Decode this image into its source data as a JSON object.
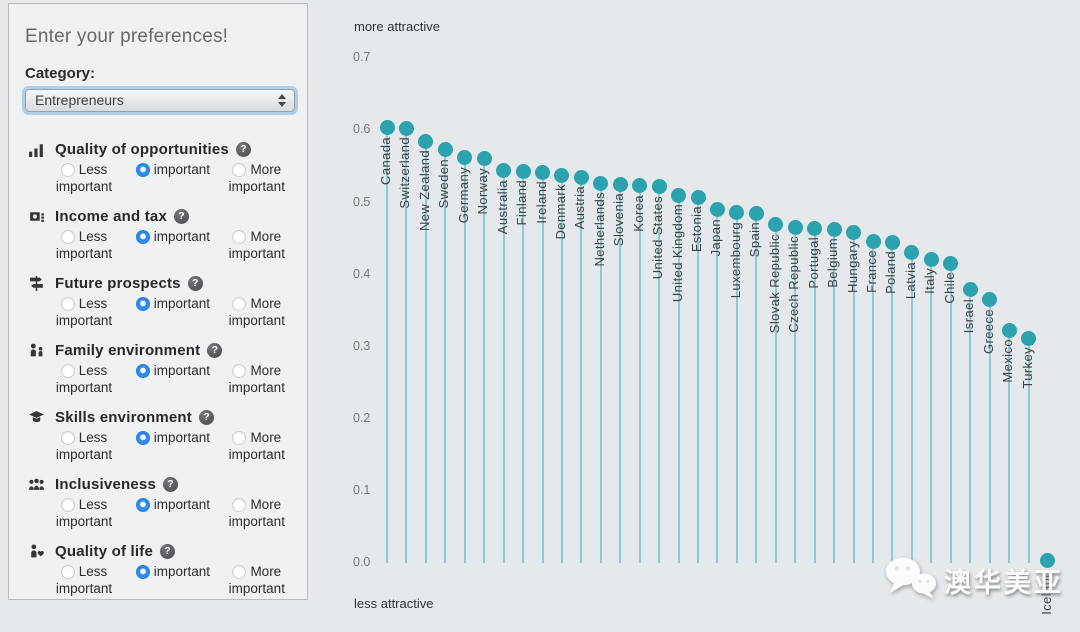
{
  "sidebar": {
    "title": "Enter your preferences!",
    "category_label": "Category:",
    "category_value": "Entrepreneurs",
    "option_less": "Less important",
    "option_mid": "important",
    "option_more": "More important",
    "sections": [
      {
        "label": "Quality of opportunities",
        "icon": "bar-chart-icon",
        "selected": "important"
      },
      {
        "label": "Income and tax",
        "icon": "income-tax-icon",
        "selected": "important"
      },
      {
        "label": "Future prospects",
        "icon": "future-prospects-icon",
        "selected": "important"
      },
      {
        "label": "Family environment",
        "icon": "family-icon",
        "selected": "important"
      },
      {
        "label": "Skills environment",
        "icon": "skills-icon",
        "selected": "important"
      },
      {
        "label": "Inclusiveness",
        "icon": "inclusiveness-icon",
        "selected": "important"
      },
      {
        "label": "Quality of life",
        "icon": "quality-of-life-icon",
        "selected": "important"
      }
    ]
  },
  "chart_data": {
    "type": "lollipop",
    "title": "",
    "top_label": "more attractive",
    "bottom_label": "less attractive",
    "ylim": [
      0.0,
      0.7
    ],
    "y_ticks": [
      0.0,
      0.1,
      0.2,
      0.3,
      0.4,
      0.5,
      0.6,
      0.7
    ],
    "grid": false,
    "dot_color": "#2ba2ad",
    "stem_color": "#8dcbd2",
    "categories": [
      "Canada",
      "Switzerland",
      "New Zealand",
      "Sweden",
      "Germany",
      "Norway",
      "Australia",
      "Finland",
      "Ireland",
      "Denmark",
      "Austria",
      "Netherlands",
      "Slovenia",
      "Korea",
      "United States",
      "United Kingdom",
      "Estonia",
      "Japan",
      "Luxembourg",
      "Spain",
      "Slovak Republic",
      "Czech Republic",
      "Portugal",
      "Belgium",
      "Hungary",
      "France",
      "Poland",
      "Latvia",
      "Italy",
      "Chile",
      "Israel",
      "Greece",
      "Mexico",
      "Turkey",
      "Iceland"
    ],
    "values": [
      0.604,
      0.603,
      0.585,
      0.573,
      0.562,
      0.561,
      0.544,
      0.543,
      0.542,
      0.538,
      0.535,
      0.527,
      0.525,
      0.523,
      0.522,
      0.51,
      0.507,
      0.49,
      0.486,
      0.485,
      0.469,
      0.466,
      0.464,
      0.463,
      0.459,
      0.446,
      0.445,
      0.43,
      0.421,
      0.416,
      0.379,
      0.365,
      0.323,
      0.312,
      0.003
    ]
  },
  "watermark": {
    "icon": "wechat-icon",
    "text": "澳华美亚"
  }
}
